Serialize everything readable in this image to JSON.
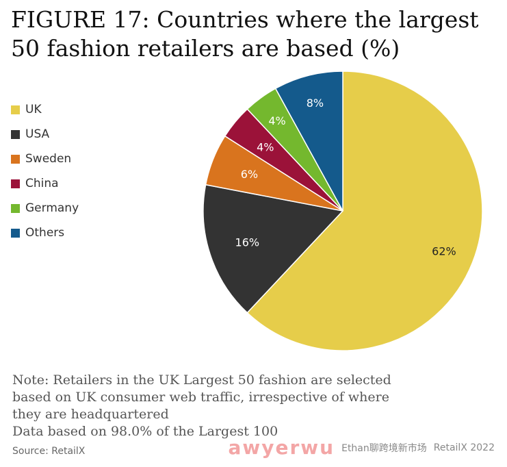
{
  "title": "FIGURE 17: Countries where the largest\n50 fashion retailers are based (%)",
  "notes": [
    "Note: Retailers in the UK Largest 50 fashion are selected",
    "based on UK consumer web traffic, irrespective of where",
    "they are headquartered",
    "Data based on 98.0% of the Largest 100"
  ],
  "source": "Source: RetailX",
  "watermark": {
    "text": "awyerwu",
    "sub": "Ethan聊跨境新市场",
    "copyright": "RetailX 2022"
  },
  "chart_data": {
    "type": "pie",
    "categories": [
      "UK",
      "USA",
      "Sweden",
      "China",
      "Germany",
      "Others"
    ],
    "values": [
      62,
      16,
      6,
      4,
      4,
      8
    ],
    "data_labels": [
      "62%",
      "16%",
      "6%",
      "4%",
      "4%",
      "8%"
    ],
    "colors": [
      "#e6cd4a",
      "#333333",
      "#d9741e",
      "#9b1239",
      "#74b82e",
      "#145a8c"
    ],
    "label_colors": [
      "#222222",
      "#ffffff",
      "#ffffff",
      "#ffffff",
      "#ffffff",
      "#ffffff"
    ],
    "legend": "left",
    "direction": "clockwise from top",
    "title": "FIGURE 17: Countries where the largest 50 fashion retailers are based (%)"
  }
}
